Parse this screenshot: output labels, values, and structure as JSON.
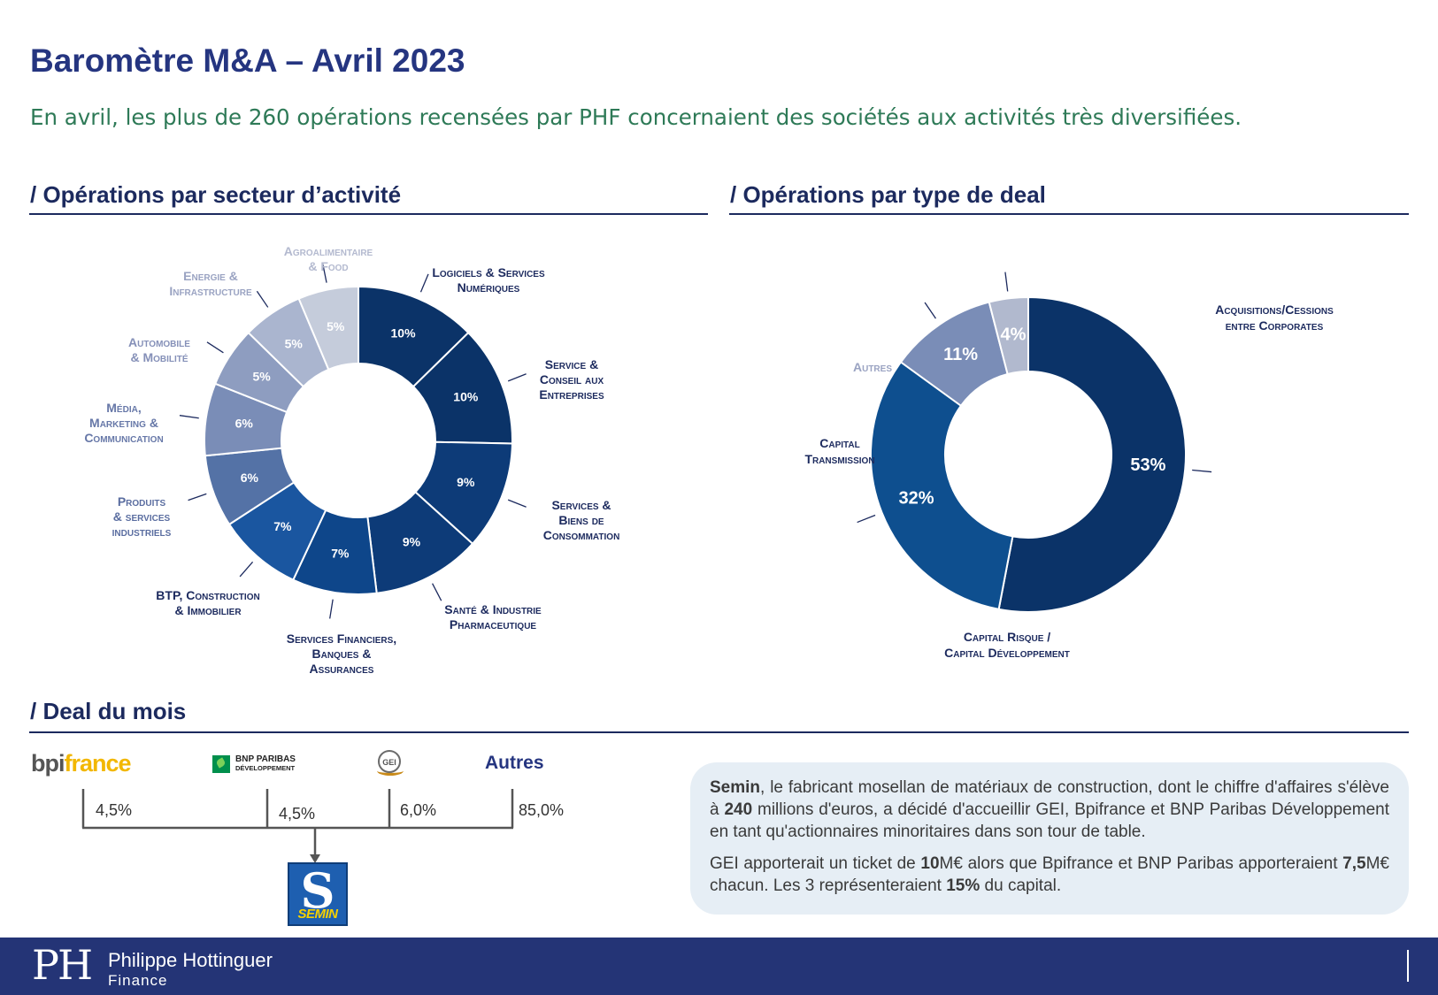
{
  "header": {
    "title": "Baromètre M&A – Avril 2023",
    "subtitle": "En avril, les plus de 260 opérations recensées par PHF concernaient des sociétés aux activités très diversifiées."
  },
  "sections": {
    "sector_title": "/ Opérations par secteur d’activité",
    "deal_type_title": "/ Opérations par type de deal",
    "deal_month_title": "/ Deal du mois"
  },
  "chart_data": [
    {
      "type": "pie",
      "variant": "donut",
      "title": "/ Opérations par secteur d’activité",
      "slices": [
        {
          "label": [
            "Logiciels & Services",
            "Numériques"
          ],
          "value": 10,
          "value_label": "10%",
          "color": "#0b3368"
        },
        {
          "label": [
            "Service &",
            "Conseil aux",
            "Entreprises"
          ],
          "value": 10,
          "value_label": "10%",
          "color": "#0b3368"
        },
        {
          "label": [
            "Services &",
            "Biens de",
            "Consommation"
          ],
          "value": 9,
          "value_label": "9%",
          "color": "#0d3b78"
        },
        {
          "label": [
            "Santé & Industrie",
            "Pharmaceutique"
          ],
          "value": 9,
          "value_label": "9%",
          "color": "#0d3b78"
        },
        {
          "label": [
            "Services Financiers,",
            "Banques &",
            "Assurances"
          ],
          "value": 7,
          "value_label": "7%",
          "color": "#0e468a"
        },
        {
          "label": [
            "BTP, Construction",
            "& Immobilier"
          ],
          "value": 7,
          "value_label": "7%",
          "color": "#1a56a0"
        },
        {
          "label": [
            "Produits",
            "& services",
            "industriels"
          ],
          "value": 6,
          "value_label": "6%",
          "color": "#5472a6"
        },
        {
          "label": [
            "Média,",
            "Marketing &",
            "Communication"
          ],
          "value": 6,
          "value_label": "6%",
          "color": "#7a8db7"
        },
        {
          "label": [
            "Automobile",
            "& Mobilité"
          ],
          "value": 5,
          "value_label": "5%",
          "color": "#8e9dc0"
        },
        {
          "label": [
            "Energie &",
            "Infrastructure"
          ],
          "value": 5,
          "value_label": "5%",
          "color": "#aab5cf"
        },
        {
          "label": [
            "Agroalimentaire",
            "& Food"
          ],
          "value": 5,
          "value_label": "5%",
          "color": "#c5ccdb"
        }
      ]
    },
    {
      "type": "pie",
      "variant": "donut",
      "title": "/ Opérations par type de deal",
      "slices": [
        {
          "label": [
            "Acquisitions/Cessions",
            "entre Corporates"
          ],
          "value": 53,
          "value_label": "53%",
          "color": "#0b3368"
        },
        {
          "label": [
            "Capital Risque /",
            "Capital Développement"
          ],
          "value": 32,
          "value_label": "32%",
          "color": "#0e4f8f"
        },
        {
          "label": [
            "Capital",
            "Transmission"
          ],
          "value": 11,
          "value_label": "11%",
          "color": "#7a8db7"
        },
        {
          "label": [
            "Autres"
          ],
          "value": 4,
          "value_label": "4%",
          "color": "#b1b9ce"
        }
      ]
    }
  ],
  "deal": {
    "investors": [
      {
        "name": "bpifrance",
        "share": "4,5%"
      },
      {
        "name": "BNP PARIBAS DÉVELOPPEMENT",
        "share": "4,5%"
      },
      {
        "name": "GEI",
        "share": "6,0%"
      },
      {
        "name": "Autres",
        "share": "85,0%"
      }
    ],
    "logo_bpi_a": "bpi",
    "logo_bpi_b": "france",
    "logo_bnp_1": "BNP PARIBAS",
    "logo_bnp_2": "DÉVELOPPEMENT",
    "logo_gei": "GEI",
    "target": "SEMIN",
    "target_mark": "S",
    "text1": {
      "b1": "Semin",
      "t1": ", le fabricant mosellan de matériaux de construction, dont le chiffre d'affaires s'élève à ",
      "b2": "240",
      "t2": " millions d'euros, a décidé d'accueillir GEI, Bpifrance et BNP Paribas Développement en tant qu'actionnaires minoritaires dans son tour de table."
    },
    "text2": {
      "t1": "GEI apporterait un ticket de ",
      "b1": "10",
      "t2": "M€ alors que Bpifrance et BNP Paribas apporteraient ",
      "b2": "7,5",
      "t3": "M€ chacun. Les 3 représenteraient ",
      "b3": "15%",
      "t4": " du capital."
    }
  },
  "footer": {
    "monogram": "PH",
    "name": "Philippe Hottinguer",
    "sub": "Finance"
  }
}
